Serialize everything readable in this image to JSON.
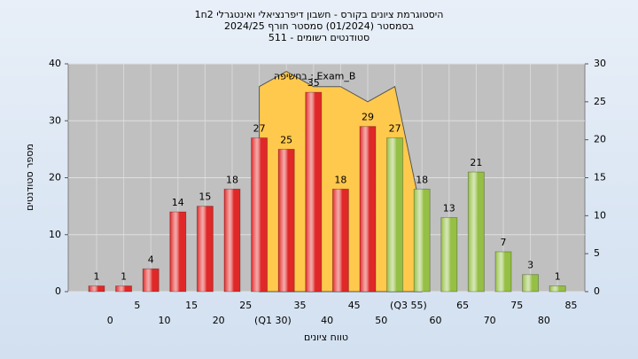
{
  "chart_data": {
    "type": "bar",
    "title": [
      "היסטוגרמת ציונים בקורס - חשבון דיפרנציאלי ואינטגרלי 2ח1",
      "בסמסטר  (01/2024)  סמסטר חורף  2024/25",
      "סטודנטים רשומים - 511"
    ],
    "x_label": "טווח ציונים",
    "y_label": "מספר סטודנטים",
    "categories": [
      "0",
      "5",
      "10",
      "15",
      "20",
      "25",
      "(Q1 30)",
      "35",
      "40",
      "45",
      "50",
      "(Q3 55)",
      "60",
      "65",
      "70",
      "75",
      "80",
      "85"
    ],
    "values": [
      1,
      1,
      4,
      14,
      15,
      18,
      27,
      25,
      35,
      18,
      29,
      27,
      18,
      13,
      21,
      7,
      3,
      1
    ],
    "colors": [
      "#e02828",
      "#e02828",
      "#e02828",
      "#e02828",
      "#e02828",
      "#e02828",
      "#e02828",
      "#e02828",
      "#e02828",
      "#e02828",
      "#e02828",
      "#95bf45",
      "#95bf45",
      "#95bf45",
      "#95bf45",
      "#95bf45",
      "#95bf45",
      "#95bf45"
    ],
    "area": {
      "name": "בחשיפה : Exam_B",
      "color": "#ffc94d",
      "axis": "y2",
      "values": [
        null,
        null,
        null,
        null,
        null,
        null,
        27,
        29,
        27,
        27,
        25,
        27,
        10,
        null,
        null,
        null,
        null,
        null
      ]
    },
    "ylim": [
      0,
      40
    ],
    "yticks": [
      0,
      10,
      20,
      30,
      40
    ],
    "y2lim": [
      0,
      30
    ],
    "y2ticks": [
      0,
      5,
      10,
      15,
      20,
      25,
      30
    ],
    "grid": true
  }
}
